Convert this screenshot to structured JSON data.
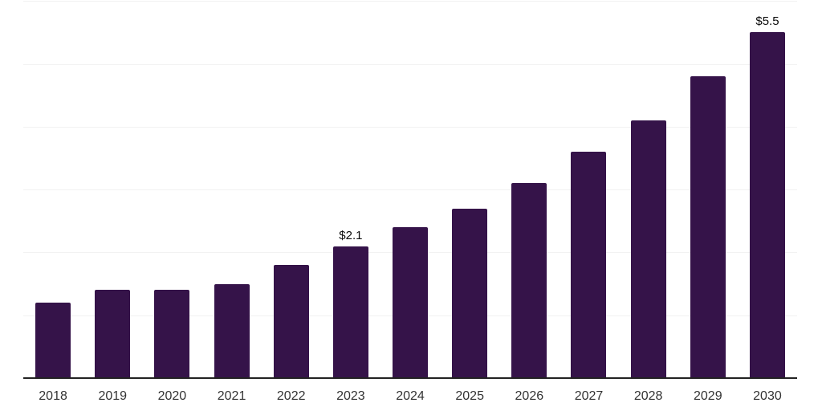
{
  "chart_data": {
    "type": "bar",
    "title": "",
    "xlabel": "",
    "ylabel": "",
    "categories": [
      "2018",
      "2019",
      "2020",
      "2021",
      "2022",
      "2023",
      "2024",
      "2025",
      "2026",
      "2027",
      "2028",
      "2029",
      "2030"
    ],
    "values": [
      1.2,
      1.4,
      1.4,
      1.5,
      1.8,
      2.1,
      2.4,
      2.7,
      3.1,
      3.6,
      4.1,
      4.8,
      5.5
    ],
    "data_labels": [
      "",
      "",
      "",
      "",
      "",
      "$2.1",
      "",
      "",
      "",
      "",
      "",
      "",
      "$5.5"
    ],
    "ylim": [
      0,
      6
    ],
    "gridline_step": 1,
    "grid": "horizontal",
    "legend": "none"
  },
  "style": {
    "bar_color": "#351349",
    "axis_line_color": "#222222",
    "gridline_color": "#f2f2f2",
    "tick_label_color": "#333333",
    "data_label_color": "#0b0b0b",
    "background_color": "#ffffff"
  }
}
